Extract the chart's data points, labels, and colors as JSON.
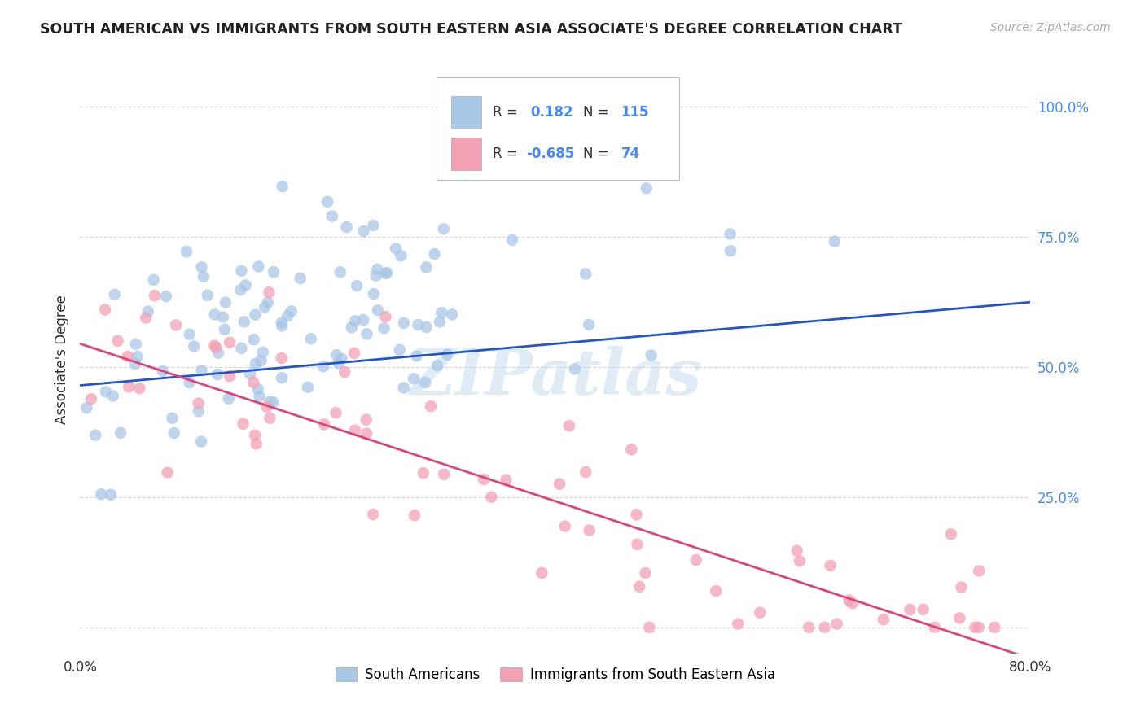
{
  "title": "SOUTH AMERICAN VS IMMIGRANTS FROM SOUTH EASTERN ASIA ASSOCIATE'S DEGREE CORRELATION CHART",
  "source": "Source: ZipAtlas.com",
  "ylabel": "Associate's Degree",
  "ytick_vals": [
    0.0,
    0.25,
    0.5,
    0.75,
    1.0
  ],
  "ytick_labels": [
    "",
    "25.0%",
    "50.0%",
    "75.0%",
    "100.0%"
  ],
  "xlim": [
    0.0,
    0.8
  ],
  "ylim": [
    -0.05,
    1.08
  ],
  "legend_labels": [
    "South Americans",
    "Immigrants from South Eastern Asia"
  ],
  "blue_R": 0.182,
  "blue_N": 115,
  "pink_R": -0.685,
  "pink_N": 74,
  "blue_color": "#a8c8e8",
  "pink_color": "#f4a0b5",
  "line_blue": "#2255cc",
  "line_pink": "#dd4477",
  "watermark": "ZIPatlas",
  "background_color": "#ffffff",
  "grid_color": "#cccccc",
  "title_color": "#222222",
  "blue_line_x0": 0.0,
  "blue_line_y0": 0.465,
  "blue_line_x1": 0.8,
  "blue_line_y1": 0.625,
  "pink_line_x0": 0.0,
  "pink_line_y0": 0.545,
  "pink_line_x1": 0.8,
  "pink_line_y1": -0.06
}
